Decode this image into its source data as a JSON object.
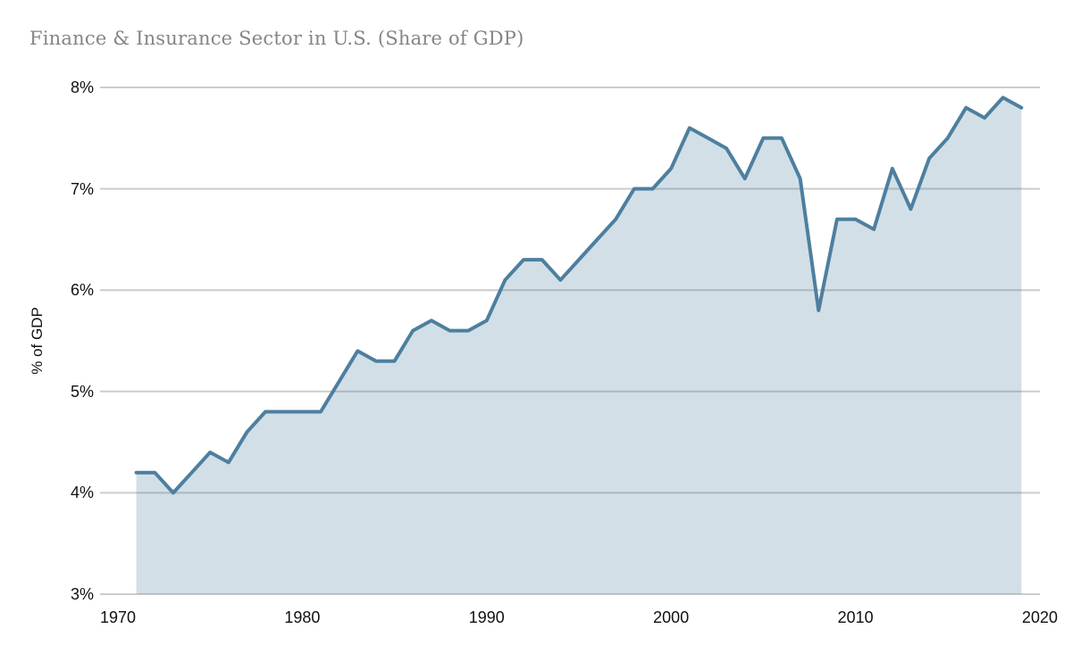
{
  "title": "Finance & Insurance Sector in U.S. (Share of GDP)",
  "chart_data": {
    "type": "area",
    "title": "Finance & Insurance Sector in U.S. (Share of GDP)",
    "xlabel": "",
    "ylabel": "% of GDP",
    "xlim": [
      1970,
      2020
    ],
    "ylim": [
      3,
      8
    ],
    "grid": "horizontal",
    "legend": "none",
    "x_ticks": [
      {
        "value": 1970,
        "label": "1970"
      },
      {
        "value": 1980,
        "label": "1980"
      },
      {
        "value": 1990,
        "label": "1990"
      },
      {
        "value": 2000,
        "label": "2000"
      },
      {
        "value": 2010,
        "label": "2010"
      },
      {
        "value": 2020,
        "label": "2020"
      }
    ],
    "y_ticks": [
      {
        "value": 3,
        "label": "3%"
      },
      {
        "value": 4,
        "label": "4%"
      },
      {
        "value": 5,
        "label": "5%"
      },
      {
        "value": 6,
        "label": "6%"
      },
      {
        "value": 7,
        "label": "7%"
      },
      {
        "value": 8,
        "label": "8%"
      }
    ],
    "x": [
      1971,
      1972,
      1973,
      1974,
      1975,
      1976,
      1977,
      1978,
      1979,
      1980,
      1981,
      1982,
      1983,
      1984,
      1985,
      1986,
      1987,
      1988,
      1989,
      1990,
      1991,
      1992,
      1993,
      1994,
      1995,
      1996,
      1997,
      1998,
      1999,
      2000,
      2001,
      2002,
      2003,
      2004,
      2005,
      2006,
      2007,
      2008,
      2009,
      2010,
      2011,
      2012,
      2013,
      2014,
      2015,
      2016,
      2017,
      2018,
      2019
    ],
    "values": [
      4.2,
      4.2,
      4.0,
      4.2,
      4.4,
      4.3,
      4.6,
      4.8,
      4.8,
      4.8,
      4.8,
      5.1,
      5.4,
      5.3,
      5.3,
      5.6,
      5.7,
      5.6,
      5.6,
      5.7,
      6.1,
      6.3,
      6.3,
      6.1,
      6.3,
      6.5,
      6.7,
      7.0,
      7.0,
      7.2,
      7.6,
      7.5,
      7.4,
      7.1,
      7.5,
      7.5,
      7.1,
      5.8,
      6.7,
      6.7,
      6.6,
      7.2,
      6.8,
      7.3,
      7.5,
      7.8,
      7.7,
      7.9,
      7.8
    ],
    "colors": {
      "line": "#4d7f9f",
      "fill": "rgba(77,127,159,0.25)",
      "gridline": "#cccccc",
      "tick_text": "#111111",
      "title_text": "#858585"
    }
  }
}
